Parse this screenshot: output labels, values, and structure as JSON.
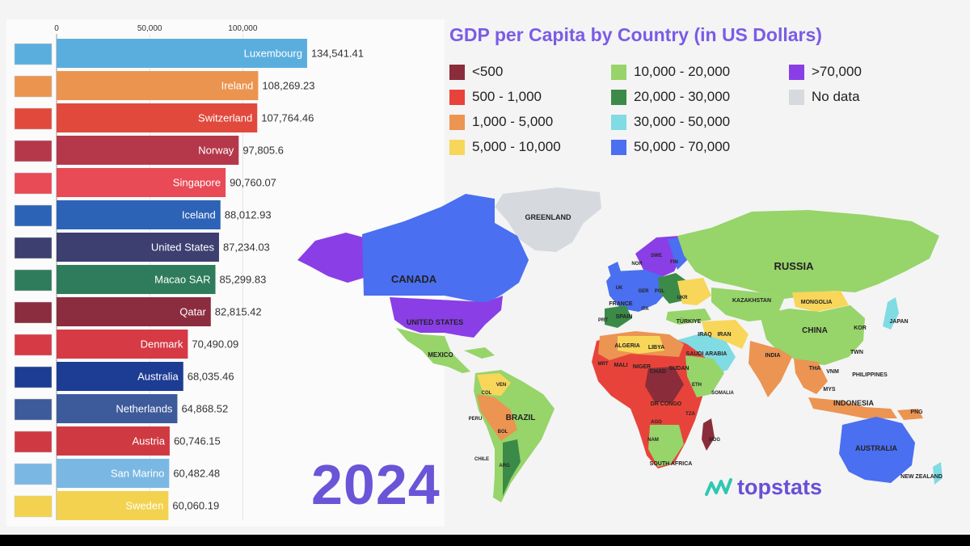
{
  "chart_data": [
    {
      "type": "bar",
      "orientation": "horizontal",
      "x_ticks": [
        0,
        50000,
        100000
      ],
      "x_tick_labels": [
        "0",
        "50,000",
        "100,000"
      ],
      "xlim": [
        0,
        135000
      ],
      "categories": [
        "Luxembourg",
        "Ireland",
        "Switzerland",
        "Norway",
        "Singapore",
        "Iceland",
        "United States",
        "Macao SAR",
        "Qatar",
        "Denmark",
        "Australia",
        "Netherlands",
        "Austria",
        "San Marino",
        "Sweden"
      ],
      "values": [
        134541.41,
        108269.23,
        107764.46,
        97805.6,
        90760.07,
        88012.93,
        87234.03,
        85299.83,
        82815.42,
        70490.09,
        68035.46,
        64868.52,
        60746.15,
        60482.48,
        60060.19
      ],
      "value_labels": [
        "134,541.41",
        "108,269.23",
        "107,764.46",
        "97,805.6",
        "90,760.07",
        "88,012.93",
        "87,234.03",
        "85,299.83",
        "82,815.42",
        "70,490.09",
        "68,035.46",
        "64,868.52",
        "60,746.15",
        "60,482.48",
        "60,060.19"
      ],
      "bar_colors": [
        "#5aaede",
        "#eb9450",
        "#e1493c",
        "#b5384a",
        "#e84a56",
        "#2c63b6",
        "#3c3f70",
        "#2f7c5d",
        "#8b2c3f",
        "#d63a45",
        "#1d3c93",
        "#3d5a9a",
        "#cf3a42",
        "#7ab8e3",
        "#f3d24f"
      ],
      "year": "2024"
    },
    {
      "type": "choropleth",
      "title": "GDP per Capita by Country (in US Dollars)",
      "legend": [
        {
          "label": "<500",
          "color": "#8b2c3a"
        },
        {
          "label": "500 - 1,000",
          "color": "#e8433a"
        },
        {
          "label": "1,000 - 5,000",
          "color": "#ec9452"
        },
        {
          "label": "5,000 - 10,000",
          "color": "#f8d65a"
        },
        {
          "label": "10,000 - 20,000",
          "color": "#97d46a"
        },
        {
          "label": "20,000 - 30,000",
          "color": "#3c8a48"
        },
        {
          "label": "30,000 - 50,000",
          "color": "#80dbe3"
        },
        {
          "label": "50,000 - 70,000",
          "color": "#4a6ff0"
        },
        {
          "label": ">70,000",
          "color": "#8a3ee6"
        },
        {
          "label": "No data",
          "color": "#d6dade"
        }
      ],
      "country_labels": [
        "GREENLAND",
        "CANADA",
        "UNITED STATES",
        "MEXICO",
        "RUSSIA",
        "KAZAKHSTAN",
        "MONGOLIA",
        "CHINA",
        "JAPAN",
        "KOR",
        "TWN",
        "INDIA",
        "THA",
        "VNM",
        "MYS",
        "PHILIPPINES",
        "INDONESIA",
        "PNG",
        "AUSTRALIA",
        "NEW ZEALAND",
        "NOR",
        "SWE",
        "FIN",
        "UK",
        "GER",
        "POL",
        "UKR",
        "FRANCE",
        "ITA",
        "SPAIN",
        "PRT",
        "TÜRKIYE",
        "IRAQ",
        "IRAN",
        "SAUDI ARABIA",
        "ALGERIA",
        "LIBYA",
        "MRT",
        "MALI",
        "NIGER",
        "CHAD",
        "SUDAN",
        "ETH",
        "SOMALIA",
        "DR CONGO",
        "TZA",
        "AGO",
        "NAM",
        "SOUTH AFRICA",
        "MDG",
        "VEN",
        "COL",
        "PERU",
        "BRAZIL",
        "BOL",
        "CHILE",
        "ARG"
      ]
    }
  ],
  "brand": {
    "name": "topstats",
    "color": "#6a4fd6",
    "icon_color": "#2fc7b3"
  }
}
